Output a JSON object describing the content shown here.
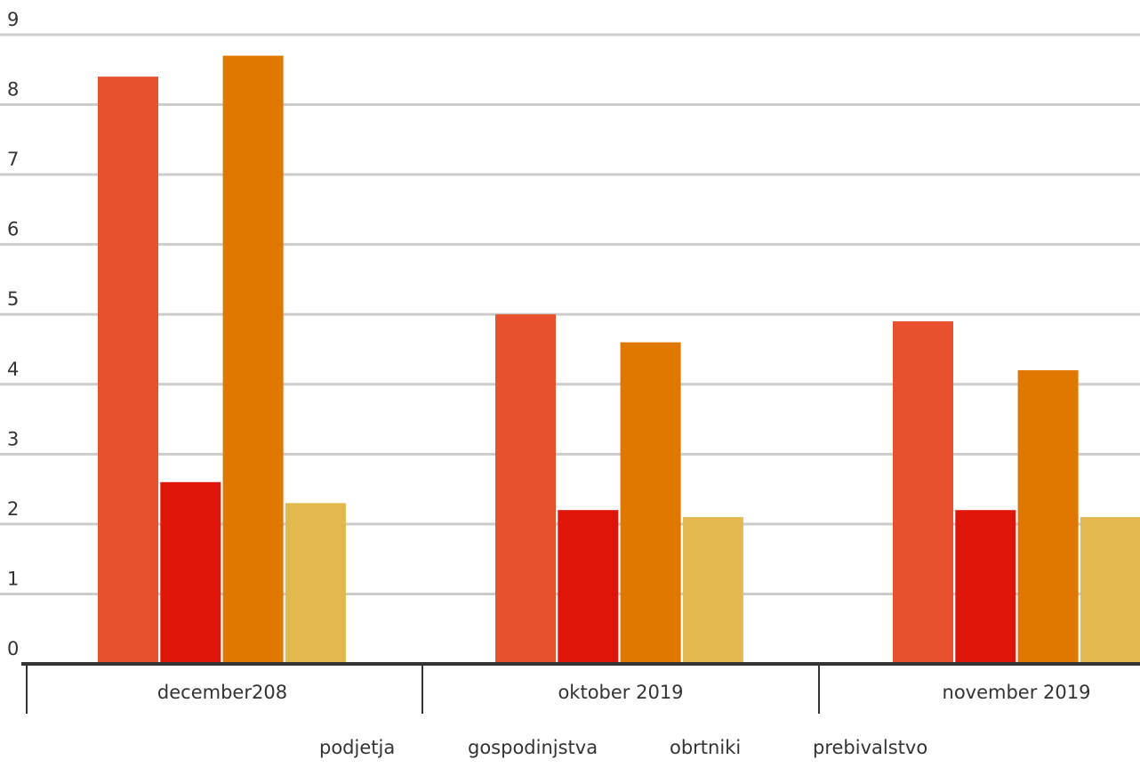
{
  "chart_data": {
    "type": "bar",
    "categories": [
      "december208",
      "oktober 2019",
      "november 2019"
    ],
    "series": [
      {
        "name": "podjetja",
        "color": "#e8502e",
        "values": [
          8.4,
          5.0,
          4.9
        ]
      },
      {
        "name": "gospodinjstva",
        "color": "#e0150a",
        "values": [
          2.6,
          2.2,
          2.2
        ]
      },
      {
        "name": "obrtniki",
        "color": "#e07800",
        "values": [
          8.7,
          4.6,
          4.2
        ]
      },
      {
        "name": "prebivalstvo",
        "color": "#e3b94f",
        "values": [
          2.3,
          2.1,
          2.1
        ]
      }
    ],
    "y_ticks": [
      "0",
      "1",
      "2",
      "3",
      "4",
      "5",
      "6",
      "7",
      "8",
      "9"
    ],
    "ylim": [
      0,
      9
    ],
    "grid": true,
    "legend_position": "bottom"
  }
}
